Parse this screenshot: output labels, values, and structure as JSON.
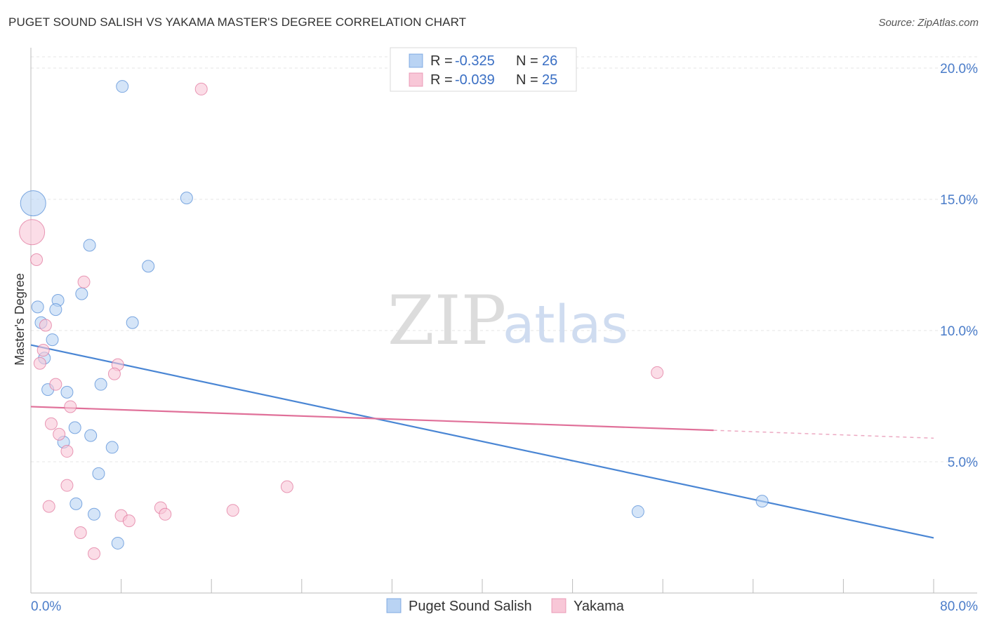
{
  "title": "PUGET SOUND SALISH VS YAKAMA MASTER'S DEGREE CORRELATION CHART",
  "source": "Source: ZipAtlas.com",
  "watermark": {
    "zip": "ZIP",
    "atlas": "atlas"
  },
  "chart_data": {
    "type": "scatter",
    "title": "PUGET SOUND SALISH VS YAKAMA MASTER'S DEGREE CORRELATION CHART",
    "xlabel": "",
    "ylabel": "Master's Degree",
    "xlim": [
      0,
      80
    ],
    "ylim": [
      0,
      20.5
    ],
    "x_tick_labels": [
      {
        "value": 0,
        "label": "0.0%"
      },
      {
        "value": 80,
        "label": "80.0%"
      }
    ],
    "x_minor_ticks": [
      0,
      8,
      16,
      24,
      32,
      40,
      48,
      56,
      64,
      72,
      80
    ],
    "y_ticks": [
      {
        "value": 5,
        "label": "5.0%"
      },
      {
        "value": 10,
        "label": "10.0%"
      },
      {
        "value": 15,
        "label": "15.0%"
      },
      {
        "value": 20,
        "label": "20.0%"
      }
    ],
    "grid": true,
    "legend_placement": "top-center",
    "series": [
      {
        "name": "Puget Sound Salish",
        "color": "#4a86d4",
        "fill": "#b9d3f3",
        "R": "-0.325",
        "N": "26",
        "points": [
          {
            "x": 0.2,
            "y": 14.85,
            "big": true
          },
          {
            "x": 8.1,
            "y": 19.3
          },
          {
            "x": 13.8,
            "y": 15.05
          },
          {
            "x": 5.2,
            "y": 13.25
          },
          {
            "x": 10.4,
            "y": 12.45
          },
          {
            "x": 4.5,
            "y": 11.4
          },
          {
            "x": 0.6,
            "y": 10.9
          },
          {
            "x": 2.4,
            "y": 11.15
          },
          {
            "x": 2.2,
            "y": 10.8
          },
          {
            "x": 0.9,
            "y": 10.3
          },
          {
            "x": 9.0,
            "y": 10.3
          },
          {
            "x": 1.9,
            "y": 9.65
          },
          {
            "x": 1.2,
            "y": 8.95
          },
          {
            "x": 6.2,
            "y": 7.95
          },
          {
            "x": 1.5,
            "y": 7.75
          },
          {
            "x": 3.2,
            "y": 7.65
          },
          {
            "x": 3.9,
            "y": 6.3
          },
          {
            "x": 5.3,
            "y": 6.0
          },
          {
            "x": 2.9,
            "y": 5.75
          },
          {
            "x": 7.2,
            "y": 5.55
          },
          {
            "x": 6.0,
            "y": 4.55
          },
          {
            "x": 4.0,
            "y": 3.4
          },
          {
            "x": 5.6,
            "y": 3.0
          },
          {
            "x": 7.7,
            "y": 1.9
          },
          {
            "x": 53.8,
            "y": 3.1
          },
          {
            "x": 64.8,
            "y": 3.5
          }
        ],
        "trend": {
          "x0": 0,
          "y0": 9.45,
          "x1": 80,
          "y1": 2.1
        }
      },
      {
        "name": "Yakama",
        "color": "#e07099",
        "fill": "#f8c7d7",
        "R": "-0.039",
        "N": "25",
        "points": [
          {
            "x": 0.1,
            "y": 13.75,
            "big": true
          },
          {
            "x": 15.1,
            "y": 19.2
          },
          {
            "x": 0.5,
            "y": 12.7
          },
          {
            "x": 4.7,
            "y": 11.85
          },
          {
            "x": 1.3,
            "y": 10.2
          },
          {
            "x": 1.1,
            "y": 9.25
          },
          {
            "x": 0.8,
            "y": 8.75
          },
          {
            "x": 7.7,
            "y": 8.7
          },
          {
            "x": 7.4,
            "y": 8.35
          },
          {
            "x": 2.2,
            "y": 7.95
          },
          {
            "x": 3.5,
            "y": 7.1
          },
          {
            "x": 1.8,
            "y": 6.45
          },
          {
            "x": 2.5,
            "y": 6.05
          },
          {
            "x": 3.2,
            "y": 5.4
          },
          {
            "x": 55.5,
            "y": 8.4
          },
          {
            "x": 3.2,
            "y": 4.1
          },
          {
            "x": 22.7,
            "y": 4.05
          },
          {
            "x": 1.6,
            "y": 3.3
          },
          {
            "x": 11.5,
            "y": 3.25
          },
          {
            "x": 11.9,
            "y": 3.0
          },
          {
            "x": 17.9,
            "y": 3.15
          },
          {
            "x": 8.0,
            "y": 2.95
          },
          {
            "x": 8.7,
            "y": 2.75
          },
          {
            "x": 4.4,
            "y": 2.3
          },
          {
            "x": 5.6,
            "y": 1.5
          }
        ],
        "trend": {
          "x0": 0,
          "y0": 7.1,
          "x1": 60.5,
          "y1": 6.2
        },
        "trend_dashed": {
          "x0": 60.5,
          "y0": 6.2,
          "x1": 80,
          "y1": 5.9
        }
      }
    ]
  },
  "legend": {
    "r_label": "R =",
    "n_label": "N ="
  }
}
